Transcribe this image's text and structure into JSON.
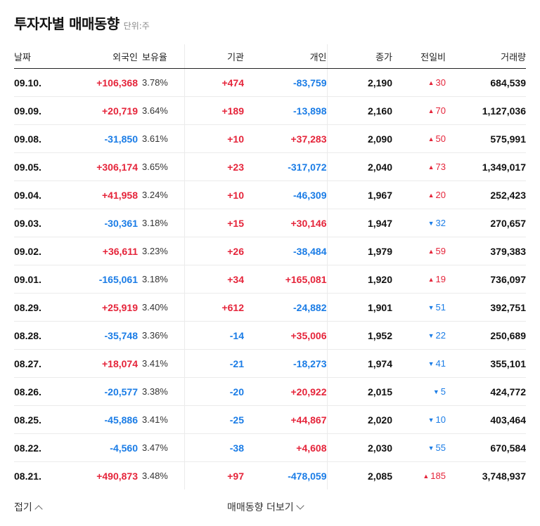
{
  "header": {
    "title": "투자자별 매매동향",
    "unit": "단위:주"
  },
  "columns": [
    "날짜",
    "외국인",
    "보유율",
    "기관",
    "개인",
    "종가",
    "전일비",
    "거래량"
  ],
  "rows": [
    {
      "date": "09.10.",
      "foreign": "+106,368",
      "foreign_dir": "up",
      "rate": "3.78%",
      "inst": "+474",
      "inst_dir": "up",
      "indiv": "-83,759",
      "indiv_dir": "down",
      "close": "2,190",
      "chg": "30",
      "chg_dir": "up",
      "volume": "684,539"
    },
    {
      "date": "09.09.",
      "foreign": "+20,719",
      "foreign_dir": "up",
      "rate": "3.64%",
      "inst": "+189",
      "inst_dir": "up",
      "indiv": "-13,898",
      "indiv_dir": "down",
      "close": "2,160",
      "chg": "70",
      "chg_dir": "up",
      "volume": "1,127,036"
    },
    {
      "date": "09.08.",
      "foreign": "-31,850",
      "foreign_dir": "down",
      "rate": "3.61%",
      "inst": "+10",
      "inst_dir": "up",
      "indiv": "+37,283",
      "indiv_dir": "up",
      "close": "2,090",
      "chg": "50",
      "chg_dir": "up",
      "volume": "575,991"
    },
    {
      "date": "09.05.",
      "foreign": "+306,174",
      "foreign_dir": "up",
      "rate": "3.65%",
      "inst": "+23",
      "inst_dir": "up",
      "indiv": "-317,072",
      "indiv_dir": "down",
      "close": "2,040",
      "chg": "73",
      "chg_dir": "up",
      "volume": "1,349,017"
    },
    {
      "date": "09.04.",
      "foreign": "+41,958",
      "foreign_dir": "up",
      "rate": "3.24%",
      "inst": "+10",
      "inst_dir": "up",
      "indiv": "-46,309",
      "indiv_dir": "down",
      "close": "1,967",
      "chg": "20",
      "chg_dir": "up",
      "volume": "252,423"
    },
    {
      "date": "09.03.",
      "foreign": "-30,361",
      "foreign_dir": "down",
      "rate": "3.18%",
      "inst": "+15",
      "inst_dir": "up",
      "indiv": "+30,146",
      "indiv_dir": "up",
      "close": "1,947",
      "chg": "32",
      "chg_dir": "down",
      "volume": "270,657"
    },
    {
      "date": "09.02.",
      "foreign": "+36,611",
      "foreign_dir": "up",
      "rate": "3.23%",
      "inst": "+26",
      "inst_dir": "up",
      "indiv": "-38,484",
      "indiv_dir": "down",
      "close": "1,979",
      "chg": "59",
      "chg_dir": "up",
      "volume": "379,383"
    },
    {
      "date": "09.01.",
      "foreign": "-165,061",
      "foreign_dir": "down",
      "rate": "3.18%",
      "inst": "+34",
      "inst_dir": "up",
      "indiv": "+165,081",
      "indiv_dir": "up",
      "close": "1,920",
      "chg": "19",
      "chg_dir": "up",
      "volume": "736,097"
    },
    {
      "date": "08.29.",
      "foreign": "+25,919",
      "foreign_dir": "up",
      "rate": "3.40%",
      "inst": "+612",
      "inst_dir": "up",
      "indiv": "-24,882",
      "indiv_dir": "down",
      "close": "1,901",
      "chg": "51",
      "chg_dir": "down",
      "volume": "392,751"
    },
    {
      "date": "08.28.",
      "foreign": "-35,748",
      "foreign_dir": "down",
      "rate": "3.36%",
      "inst": "-14",
      "inst_dir": "down",
      "indiv": "+35,006",
      "indiv_dir": "up",
      "close": "1,952",
      "chg": "22",
      "chg_dir": "down",
      "volume": "250,689"
    },
    {
      "date": "08.27.",
      "foreign": "+18,074",
      "foreign_dir": "up",
      "rate": "3.41%",
      "inst": "-21",
      "inst_dir": "down",
      "indiv": "-18,273",
      "indiv_dir": "down",
      "close": "1,974",
      "chg": "41",
      "chg_dir": "down",
      "volume": "355,101"
    },
    {
      "date": "08.26.",
      "foreign": "-20,577",
      "foreign_dir": "down",
      "rate": "3.38%",
      "inst": "-20",
      "inst_dir": "down",
      "indiv": "+20,922",
      "indiv_dir": "up",
      "close": "2,015",
      "chg": "5",
      "chg_dir": "down",
      "volume": "424,772"
    },
    {
      "date": "08.25.",
      "foreign": "-45,886",
      "foreign_dir": "down",
      "rate": "3.41%",
      "inst": "-25",
      "inst_dir": "down",
      "indiv": "+44,867",
      "indiv_dir": "up",
      "close": "2,020",
      "chg": "10",
      "chg_dir": "down",
      "volume": "403,464"
    },
    {
      "date": "08.22.",
      "foreign": "-4,560",
      "foreign_dir": "down",
      "rate": "3.47%",
      "inst": "-38",
      "inst_dir": "down",
      "indiv": "+4,608",
      "indiv_dir": "up",
      "close": "2,030",
      "chg": "55",
      "chg_dir": "down",
      "volume": "670,584"
    },
    {
      "date": "08.21.",
      "foreign": "+490,873",
      "foreign_dir": "up",
      "rate": "3.48%",
      "inst": "+97",
      "inst_dir": "up",
      "indiv": "-478,059",
      "indiv_dir": "down",
      "close": "2,085",
      "chg": "185",
      "chg_dir": "up",
      "volume": "3,748,937"
    }
  ],
  "footer": {
    "fold_label": "접기",
    "more_label": "매매동향 더보기"
  },
  "colors": {
    "up": "#e5243a",
    "down": "#1a7ce6"
  },
  "icons": {
    "up": "triangle-up-icon",
    "down": "triangle-down-icon"
  }
}
